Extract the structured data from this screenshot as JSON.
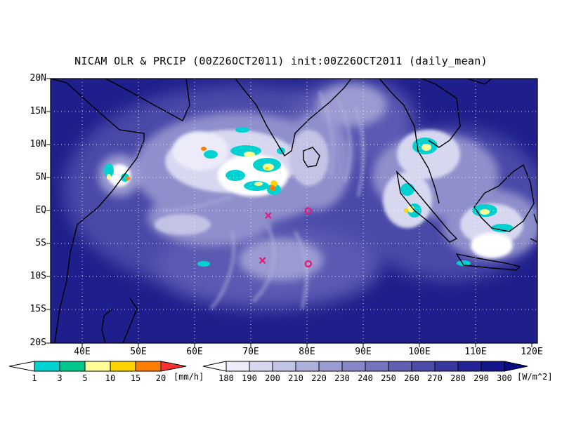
{
  "title": "NICAM OLR & PRCIP (00Z26OCT2011) init:00Z26OCT2011 (daily_mean)",
  "lat_labels": [
    "20N",
    "15N",
    "10N",
    "5N",
    "EQ",
    "5S",
    "10S",
    "15S",
    "20S"
  ],
  "lon_labels": [
    "40E",
    "50E",
    "60E",
    "70E",
    "80E",
    "90E",
    "100E",
    "110E",
    "120E"
  ],
  "precip_legend": {
    "labels": [
      "1",
      "3",
      "5",
      "10",
      "15",
      "20"
    ],
    "unit": "[mm/h]",
    "colors": [
      "#ffffff",
      "#00d2d2",
      "#00c88c",
      "#ffff96",
      "#ffd200",
      "#ff7d00",
      "#ff3232"
    ]
  },
  "olr_legend": {
    "labels": [
      "180",
      "190",
      "200",
      "210",
      "220",
      "230",
      "240",
      "250",
      "260",
      "270",
      "280",
      "290",
      "300"
    ],
    "unit": "[W/m^2]",
    "colors": [
      "#ffffff",
      "#ebebfa",
      "#d7d7f0",
      "#c3c3e6",
      "#afafdc",
      "#9b9bd2",
      "#8787c8",
      "#7373be",
      "#5f5fb4",
      "#4b4baa",
      "#3737a0",
      "#232396",
      "#14148c",
      "#0a0a82"
    ]
  },
  "markers": [
    {
      "type": "cross",
      "lon": 73,
      "lat": -0.7,
      "color": "#e6197d"
    },
    {
      "type": "cross",
      "lon": 72,
      "lat": -7.5,
      "color": "#e6197d"
    },
    {
      "type": "circle",
      "lon": 80,
      "lat": 0,
      "color": "#e6197d"
    },
    {
      "type": "circle",
      "lon": 80,
      "lat": -8,
      "color": "#e6197d"
    }
  ]
}
